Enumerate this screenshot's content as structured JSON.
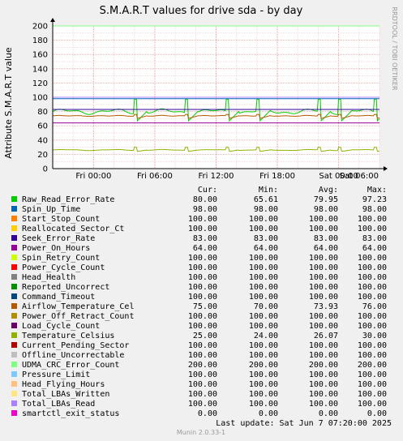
{
  "chart_data": {
    "type": "line",
    "title": "S.M.A.R.T values for drive sda - by day",
    "ylabel": "Attribute S.M.A.R.T value",
    "side_label": "RRDTOOL / TOBI OETIKER",
    "ylim": [
      0,
      200
    ],
    "y_ticks": [
      "0",
      "20",
      "40",
      "60",
      "80",
      "100",
      "120",
      "140",
      "160",
      "180",
      "200"
    ],
    "x_ticks": [
      "Fri 00:00",
      "Fri 06:00",
      "Fri 12:00",
      "Fri 18:00",
      "Sat 00:00",
      "Sat 06:00"
    ],
    "grid": true,
    "columns": [
      "Cur:",
      "Min:",
      "Avg:",
      "Max:"
    ],
    "series": [
      {
        "name": "Raw_Read_Error_Rate",
        "color": "#00cc00",
        "cur": "80.00",
        "min": "65.61",
        "avg": "79.95",
        "max": "97.23"
      },
      {
        "name": "Spin_Up_Time",
        "color": "#0066b3",
        "cur": "98.00",
        "min": "98.00",
        "avg": "98.00",
        "max": "98.00"
      },
      {
        "name": "Start_Stop_Count",
        "color": "#ff8000",
        "cur": "100.00",
        "min": "100.00",
        "avg": "100.00",
        "max": "100.00"
      },
      {
        "name": "Reallocated_Sector_Ct",
        "color": "#ffcc00",
        "cur": "100.00",
        "min": "100.00",
        "avg": "100.00",
        "max": "100.00"
      },
      {
        "name": "Seek_Error_Rate",
        "color": "#330099",
        "cur": "83.00",
        "min": "83.00",
        "avg": "83.00",
        "max": "83.00"
      },
      {
        "name": "Power_On_Hours",
        "color": "#990099",
        "cur": "64.00",
        "min": "64.00",
        "avg": "64.00",
        "max": "64.00"
      },
      {
        "name": "Spin_Retry_Count",
        "color": "#ccff00",
        "cur": "100.00",
        "min": "100.00",
        "avg": "100.00",
        "max": "100.00"
      },
      {
        "name": "Power_Cycle_Count",
        "color": "#ff0000",
        "cur": "100.00",
        "min": "100.00",
        "avg": "100.00",
        "max": "100.00"
      },
      {
        "name": "Head_Health",
        "color": "#808080",
        "cur": "100.00",
        "min": "100.00",
        "avg": "100.00",
        "max": "100.00"
      },
      {
        "name": "Reported_Uncorrect",
        "color": "#008f00",
        "cur": "100.00",
        "min": "100.00",
        "avg": "100.00",
        "max": "100.00"
      },
      {
        "name": "Command_Timeout",
        "color": "#00487d",
        "cur": "100.00",
        "min": "100.00",
        "avg": "100.00",
        "max": "100.00"
      },
      {
        "name": "Airflow_Temperature_Cel",
        "color": "#b35a00",
        "cur": "75.00",
        "min": "70.00",
        "avg": "73.93",
        "max": "76.00"
      },
      {
        "name": "Power_Off_Retract_Count",
        "color": "#b38f00",
        "cur": "100.00",
        "min": "100.00",
        "avg": "100.00",
        "max": "100.00"
      },
      {
        "name": "Load_Cycle_Count",
        "color": "#6b006b",
        "cur": "100.00",
        "min": "100.00",
        "avg": "100.00",
        "max": "100.00"
      },
      {
        "name": "Temperature_Celsius",
        "color": "#8fb300",
        "cur": "25.00",
        "min": "24.00",
        "avg": "26.07",
        "max": "30.00"
      },
      {
        "name": "Current_Pending_Sector",
        "color": "#b30000",
        "cur": "100.00",
        "min": "100.00",
        "avg": "100.00",
        "max": "100.00"
      },
      {
        "name": "Offline_Uncorrectable",
        "color": "#bebebe",
        "cur": "100.00",
        "min": "100.00",
        "avg": "100.00",
        "max": "100.00"
      },
      {
        "name": "UDMA_CRC_Error_Count",
        "color": "#80ff80",
        "cur": "200.00",
        "min": "200.00",
        "avg": "200.00",
        "max": "200.00"
      },
      {
        "name": "Pressure_Limit",
        "color": "#80c9ff",
        "cur": "100.00",
        "min": "100.00",
        "avg": "100.00",
        "max": "100.00"
      },
      {
        "name": "Head_Flying_Hours",
        "color": "#ffc080",
        "cur": "100.00",
        "min": "100.00",
        "avg": "100.00",
        "max": "100.00"
      },
      {
        "name": "Total_LBAs_Written",
        "color": "#ffe680",
        "cur": "100.00",
        "min": "100.00",
        "avg": "100.00",
        "max": "100.00"
      },
      {
        "name": "Total_LBAs_Read",
        "color": "#aa80ff",
        "cur": "100.00",
        "min": "100.00",
        "avg": "100.00",
        "max": "100.00"
      },
      {
        "name": "smartctl_exit_status",
        "color": "#ee00cc",
        "cur": "0.00",
        "min": "0.00",
        "avg": "0.00",
        "max": "0.00"
      }
    ],
    "last_update": "Last update:  Sat Jun  7 07:20:00 2025",
    "footer": "Munin 2.0.33-1"
  }
}
